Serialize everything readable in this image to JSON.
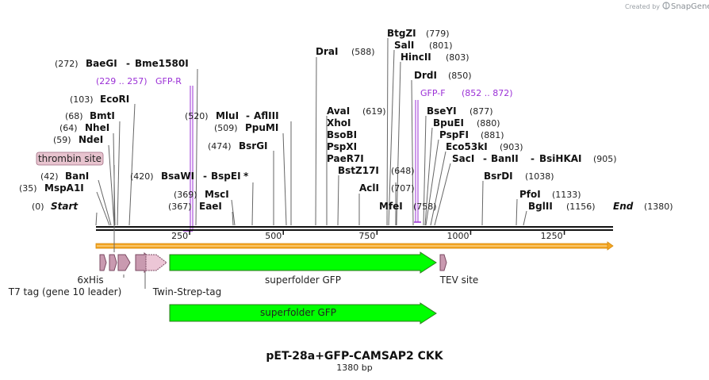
{
  "header": {
    "credit": "Created by",
    "brand": "SnapGene"
  },
  "map": {
    "title": "pET-28a+GFP-CAMSAP2 CKK",
    "length_label": "1380 bp",
    "length": 1380,
    "ticks": [
      {
        "pos": 250,
        "label": "250"
      },
      {
        "pos": 500,
        "label": "500"
      },
      {
        "pos": 750,
        "label": "750"
      },
      {
        "pos": 1000,
        "label": "1000"
      },
      {
        "pos": 1250,
        "label": "1250"
      }
    ],
    "sites": [
      {
        "name": "Start",
        "pos_label": "(0)",
        "cut": 0,
        "terminal": true
      },
      {
        "name": "MspA1I",
        "pos_label": "(35)",
        "cut": 35
      },
      {
        "name": "BanI",
        "pos_label": "(42)",
        "cut": 42
      },
      {
        "name": "NdeI",
        "pos_label": "(59)",
        "cut": 59
      },
      {
        "name": "NheI",
        "pos_label": "(64)",
        "cut": 64
      },
      {
        "name": "BmtI",
        "pos_label": "(68)",
        "cut": 68
      },
      {
        "name": "EcoRI",
        "pos_label": "(103)",
        "cut": 103
      },
      {
        "name": "BaeGI",
        "name2": "Bme1580I",
        "pos_label": "(272)",
        "cut": 272
      },
      {
        "name": "EaeI",
        "pos_label": "(367)",
        "cut": 367
      },
      {
        "name": "MscI",
        "pos_label": "(369)",
        "cut": 369
      },
      {
        "name": "BsaWI",
        "name2": "BspEI",
        "star": "*",
        "pos_label": "(420)",
        "cut": 420
      },
      {
        "name": "BsrGI",
        "pos_label": "(474)",
        "cut": 474
      },
      {
        "name": "PpuMI",
        "pos_label": "(509)",
        "cut": 509
      },
      {
        "name": "MluI",
        "name2": "AflIII",
        "pos_label": "(520)",
        "cut": 520
      },
      {
        "name": "DraI",
        "pos_label": "(588)",
        "cut": 588
      },
      {
        "name": "AvaI",
        "pos_label": "(619)",
        "cut": 619
      },
      {
        "name": "XhoI",
        "cut": 619
      },
      {
        "name": "BsoBI",
        "cut": 619
      },
      {
        "name": "PspXI",
        "cut": 619
      },
      {
        "name": "PaeR7I",
        "cut": 619
      },
      {
        "name": "BstZ17I",
        "pos_label": "(648)",
        "cut": 648
      },
      {
        "name": "AclI",
        "pos_label": "(707)",
        "cut": 707
      },
      {
        "name": "MfeI",
        "pos_label": "(758)",
        "cut": 758
      },
      {
        "name": "BtgZI",
        "pos_label": "(779)",
        "cut": 779
      },
      {
        "name": "SalI",
        "pos_label": "(801)",
        "cut": 801
      },
      {
        "name": "HincII",
        "pos_label": "(803)",
        "cut": 803
      },
      {
        "name": "DrdI",
        "pos_label": "(850)",
        "cut": 850
      },
      {
        "name": "BseYI",
        "pos_label": "(877)",
        "cut": 877
      },
      {
        "name": "BpuEI",
        "pos_label": "(880)",
        "cut": 880
      },
      {
        "name": "PspFI",
        "pos_label": "(881)",
        "cut": 881
      },
      {
        "name": "Eco53kI",
        "pos_label": "(903)",
        "cut": 903
      },
      {
        "name": "SacI",
        "name2": "BanII",
        "name3": "BsiHKAI",
        "pos_label": "(905)",
        "cut": 905
      },
      {
        "name": "BsrDI",
        "pos_label": "(1038)",
        "cut": 1038
      },
      {
        "name": "PfoI",
        "pos_label": "(1133)",
        "cut": 1133
      },
      {
        "name": "BglII",
        "pos_label": "(1156)",
        "cut": 1156
      },
      {
        "name": "End",
        "pos_label": "(1380)",
        "cut": 1380,
        "terminal": true
      }
    ],
    "primers": [
      {
        "name": "GFP-R",
        "range_label": "(229 .. 257)",
        "start": 229,
        "end": 257,
        "direction": "reverse"
      },
      {
        "name": "GFP-F",
        "range_label": "(852 .. 872)",
        "start": 852,
        "end": 872,
        "direction": "forward"
      }
    ],
    "misc_labels": [
      {
        "name": "thrombin site"
      }
    ],
    "features": [
      {
        "name": "T7 tag (gene 10 leader)",
        "start": 0,
        "end": 33,
        "color": "#c99ab0"
      },
      {
        "name": "6xHis",
        "start": 48,
        "end": 66,
        "color": "#c99ab0"
      },
      {
        "name": "Twin-Strep-tag",
        "start": 105,
        "end": 190,
        "color": "#c99ab0"
      },
      {
        "name": "superfolder GFP",
        "start": 196,
        "end": 915,
        "color": "#00ff00"
      },
      {
        "name": "TEV site",
        "start": 936,
        "end": 957,
        "color": "#c99ab0"
      }
    ],
    "translations": [
      {
        "name": "superfolder GFP",
        "start": 196,
        "end": 915,
        "color": "#00ff00"
      }
    ],
    "colors": {
      "backbone": "#111111",
      "orf": "#f5a623",
      "primer": "#9b30d6",
      "site_box": "#e8c4cf"
    }
  }
}
